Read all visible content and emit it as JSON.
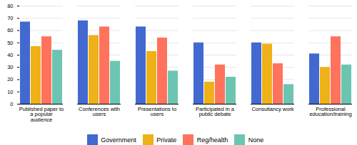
{
  "chart_data": {
    "type": "bar",
    "categories": [
      "Published paper to\na popular\naudience",
      "Conferences with\nusers",
      "Presentations to\nusers",
      "Participated in a\npublic debate",
      "Consultancy work",
      "Professional\neducation/training"
    ],
    "series": [
      {
        "name": "Government",
        "values": [
          67,
          68,
          63,
          50,
          50,
          41
        ]
      },
      {
        "name": "Private",
        "values": [
          47,
          56,
          43,
          18,
          49,
          30
        ]
      },
      {
        "name": "Reg/health",
        "values": [
          55,
          63,
          54,
          32,
          33,
          55
        ]
      },
      {
        "name": "None",
        "values": [
          44,
          35,
          27,
          22,
          16,
          32
        ]
      }
    ],
    "ylim": [
      0,
      80
    ],
    "yticks": [
      0,
      10,
      20,
      30,
      40,
      50,
      60,
      70,
      80
    ],
    "grid": true,
    "legend": "bottom"
  }
}
